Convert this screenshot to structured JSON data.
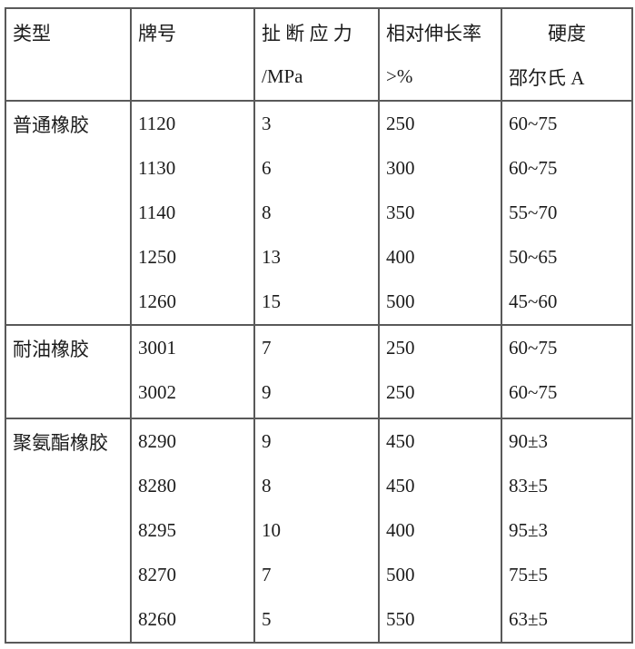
{
  "colors": {
    "background": "#ffffff",
    "border": "#595959",
    "text": "#1b1b1b"
  },
  "table": {
    "columns": [
      {
        "line1": "类型",
        "line2": ""
      },
      {
        "line1": "牌号",
        "line2": ""
      },
      {
        "line1": "扯 断 应 力",
        "line2": "/MPa"
      },
      {
        "line1": "相对伸长率",
        "line2": ">%"
      },
      {
        "line1": "硬度",
        "line2": "邵尔氏 A"
      }
    ],
    "sections": [
      {
        "type": "普通橡胶",
        "rows": [
          {
            "grade": "1120",
            "tensile": "3",
            "elongation": "250",
            "hardness": "60~75"
          },
          {
            "grade": "1130",
            "tensile": "6",
            "elongation": "300",
            "hardness": "60~75"
          },
          {
            "grade": "1140",
            "tensile": "8",
            "elongation": "350",
            "hardness": "55~70"
          },
          {
            "grade": "1250",
            "tensile": "13",
            "elongation": "400",
            "hardness": "50~65"
          },
          {
            "grade": "1260",
            "tensile": "15",
            "elongation": "500",
            "hardness": "45~60"
          }
        ]
      },
      {
        "type": "耐油橡胶",
        "rows": [
          {
            "grade": "3001",
            "tensile": "7",
            "elongation": "250",
            "hardness": "60~75"
          },
          {
            "grade": "3002",
            "tensile": "9",
            "elongation": "250",
            "hardness": "60~75"
          }
        ]
      },
      {
        "type": "聚氨酯橡胶",
        "rows": [
          {
            "grade": "8290",
            "tensile": "9",
            "elongation": "450",
            "hardness": "90±3"
          },
          {
            "grade": "8280",
            "tensile": "8",
            "elongation": "450",
            "hardness": "83±5"
          },
          {
            "grade": "8295",
            "tensile": "10",
            "elongation": "400",
            "hardness": "95±3"
          },
          {
            "grade": "8270",
            "tensile": "7",
            "elongation": "500",
            "hardness": "75±5"
          },
          {
            "grade": "8260",
            "tensile": "5",
            "elongation": "550",
            "hardness": "63±5"
          }
        ]
      }
    ]
  }
}
